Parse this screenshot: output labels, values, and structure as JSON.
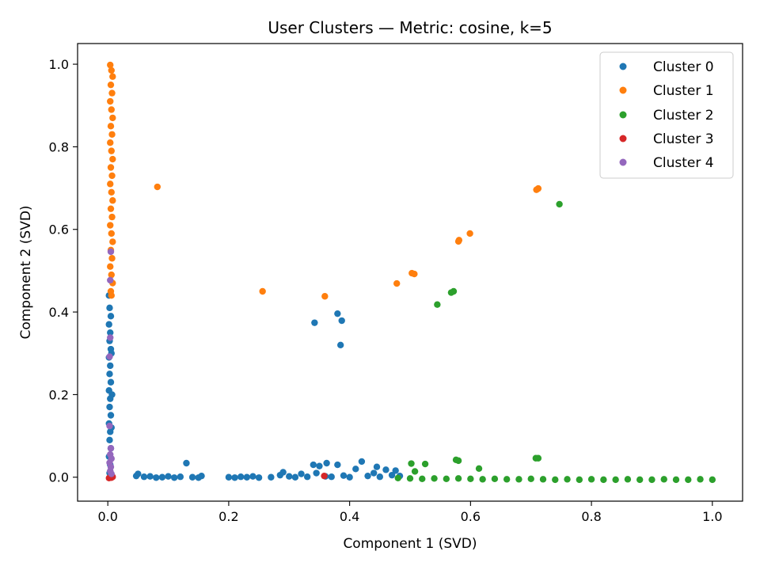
{
  "chart_data": {
    "type": "scatter",
    "title": "User Clusters — Metric: cosine, k=5",
    "xlabel": "Component 1 (SVD)",
    "ylabel": "Component 2 (SVD)",
    "xlim": [
      -0.05,
      1.05
    ],
    "ylim": [
      -0.058,
      1.05
    ],
    "x_ticks": [
      0.0,
      0.2,
      0.4,
      0.6,
      0.8,
      1.0
    ],
    "y_ticks": [
      0.0,
      0.2,
      0.4,
      0.6,
      0.8,
      1.0
    ],
    "x_tick_labels": [
      "0.0",
      "0.2",
      "0.4",
      "0.6",
      "0.8",
      "1.0"
    ],
    "y_tick_labels": [
      "0.0",
      "0.2",
      "0.4",
      "0.6",
      "0.8",
      "1.0"
    ],
    "grid": false,
    "legend_position": "top-right",
    "series": [
      {
        "name": "Cluster 0",
        "color": "#1f77b4",
        "points": [
          [
            0.002,
            0.44
          ],
          [
            0.003,
            0.41
          ],
          [
            0.005,
            0.39
          ],
          [
            0.002,
            0.37
          ],
          [
            0.004,
            0.35
          ],
          [
            0.003,
            0.33
          ],
          [
            0.005,
            0.31
          ],
          [
            0.002,
            0.29
          ],
          [
            0.004,
            0.27
          ],
          [
            0.003,
            0.25
          ],
          [
            0.005,
            0.23
          ],
          [
            0.002,
            0.21
          ],
          [
            0.004,
            0.19
          ],
          [
            0.003,
            0.17
          ],
          [
            0.005,
            0.15
          ],
          [
            0.002,
            0.13
          ],
          [
            0.004,
            0.11
          ],
          [
            0.003,
            0.09
          ],
          [
            0.005,
            0.07
          ],
          [
            0.002,
            0.05
          ],
          [
            0.004,
            0.03
          ],
          [
            0.003,
            0.01
          ],
          [
            0.006,
            0.12
          ],
          [
            0.007,
            0.2
          ],
          [
            0.006,
            0.3
          ],
          [
            0.047,
            0.003
          ],
          [
            0.05,
            0.008
          ],
          [
            0.06,
            0.001
          ],
          [
            0.07,
            0.002
          ],
          [
            0.08,
            -0.001
          ],
          [
            0.09,
            0.0
          ],
          [
            0.1,
            0.002
          ],
          [
            0.11,
            -0.001
          ],
          [
            0.12,
            0.001
          ],
          [
            0.13,
            0.034
          ],
          [
            0.14,
            0.0
          ],
          [
            0.15,
            -0.001
          ],
          [
            0.155,
            0.003
          ],
          [
            0.2,
            0.0
          ],
          [
            0.21,
            -0.001
          ],
          [
            0.22,
            0.001
          ],
          [
            0.23,
            0.0
          ],
          [
            0.24,
            0.002
          ],
          [
            0.25,
            -0.001
          ],
          [
            0.27,
            0.0
          ],
          [
            0.285,
            0.005
          ],
          [
            0.29,
            0.012
          ],
          [
            0.3,
            0.002
          ],
          [
            0.31,
            0.0
          ],
          [
            0.32,
            0.008
          ],
          [
            0.33,
            0.001
          ],
          [
            0.34,
            0.03
          ],
          [
            0.345,
            0.01
          ],
          [
            0.35,
            0.027
          ],
          [
            0.36,
            0.002
          ],
          [
            0.362,
            0.034
          ],
          [
            0.37,
            0.001
          ],
          [
            0.38,
            0.03
          ],
          [
            0.39,
            0.004
          ],
          [
            0.4,
            0.0
          ],
          [
            0.41,
            0.02
          ],
          [
            0.42,
            0.038
          ],
          [
            0.43,
            0.003
          ],
          [
            0.44,
            0.01
          ],
          [
            0.445,
            0.025
          ],
          [
            0.45,
            0.001
          ],
          [
            0.46,
            0.018
          ],
          [
            0.47,
            0.005
          ],
          [
            0.476,
            0.016
          ],
          [
            0.483,
            0.003
          ],
          [
            0.342,
            0.374
          ],
          [
            0.38,
            0.396
          ],
          [
            0.387,
            0.379
          ],
          [
            0.385,
            0.32
          ]
        ]
      },
      {
        "name": "Cluster 1",
        "color": "#ff7f0e",
        "points": [
          [
            0.004,
            0.998
          ],
          [
            0.006,
            0.985
          ],
          [
            0.008,
            0.97
          ],
          [
            0.005,
            0.95
          ],
          [
            0.007,
            0.93
          ],
          [
            0.004,
            0.91
          ],
          [
            0.006,
            0.89
          ],
          [
            0.008,
            0.87
          ],
          [
            0.005,
            0.85
          ],
          [
            0.007,
            0.83
          ],
          [
            0.004,
            0.81
          ],
          [
            0.006,
            0.79
          ],
          [
            0.008,
            0.77
          ],
          [
            0.005,
            0.75
          ],
          [
            0.007,
            0.73
          ],
          [
            0.004,
            0.71
          ],
          [
            0.006,
            0.69
          ],
          [
            0.008,
            0.67
          ],
          [
            0.005,
            0.65
          ],
          [
            0.007,
            0.63
          ],
          [
            0.004,
            0.61
          ],
          [
            0.006,
            0.59
          ],
          [
            0.008,
            0.57
          ],
          [
            0.005,
            0.55
          ],
          [
            0.007,
            0.53
          ],
          [
            0.004,
            0.51
          ],
          [
            0.006,
            0.49
          ],
          [
            0.008,
            0.47
          ],
          [
            0.005,
            0.45
          ],
          [
            0.006,
            0.44
          ],
          [
            0.082,
            0.703
          ],
          [
            0.256,
            0.45
          ],
          [
            0.359,
            0.438
          ],
          [
            0.478,
            0.469
          ],
          [
            0.503,
            0.494
          ],
          [
            0.507,
            0.492
          ],
          [
            0.58,
            0.571
          ],
          [
            0.581,
            0.574
          ],
          [
            0.599,
            0.59
          ],
          [
            0.709,
            0.696
          ],
          [
            0.712,
            0.699
          ]
        ]
      },
      {
        "name": "Cluster 2",
        "color": "#2ca02c",
        "points": [
          [
            0.48,
            -0.002
          ],
          [
            0.5,
            -0.003
          ],
          [
            0.52,
            -0.004
          ],
          [
            0.54,
            -0.003
          ],
          [
            0.56,
            -0.004
          ],
          [
            0.58,
            -0.003
          ],
          [
            0.6,
            -0.004
          ],
          [
            0.62,
            -0.005
          ],
          [
            0.64,
            -0.004
          ],
          [
            0.66,
            -0.005
          ],
          [
            0.68,
            -0.005
          ],
          [
            0.7,
            -0.004
          ],
          [
            0.72,
            -0.005
          ],
          [
            0.74,
            -0.006
          ],
          [
            0.76,
            -0.005
          ],
          [
            0.78,
            -0.006
          ],
          [
            0.8,
            -0.005
          ],
          [
            0.82,
            -0.006
          ],
          [
            0.84,
            -0.006
          ],
          [
            0.86,
            -0.005
          ],
          [
            0.88,
            -0.006
          ],
          [
            0.9,
            -0.006
          ],
          [
            0.92,
            -0.005
          ],
          [
            0.94,
            -0.006
          ],
          [
            0.96,
            -0.006
          ],
          [
            0.98,
            -0.005
          ],
          [
            1.0,
            -0.006
          ],
          [
            0.502,
            0.033
          ],
          [
            0.508,
            0.014
          ],
          [
            0.525,
            0.032
          ],
          [
            0.576,
            0.042
          ],
          [
            0.58,
            0.04
          ],
          [
            0.614,
            0.021
          ],
          [
            0.708,
            0.046
          ],
          [
            0.712,
            0.046
          ],
          [
            0.545,
            0.418
          ],
          [
            0.568,
            0.447
          ],
          [
            0.572,
            0.45
          ],
          [
            0.747,
            0.661
          ]
        ]
      },
      {
        "name": "Cluster 3",
        "color": "#d62728",
        "points": [
          [
            0.002,
            -0.002
          ],
          [
            0.004,
            0.0
          ],
          [
            0.006,
            -0.001
          ],
          [
            0.008,
            0.001
          ],
          [
            0.358,
            0.003
          ]
        ]
      },
      {
        "name": "Cluster 4",
        "color": "#9467bd",
        "points": [
          [
            0.005,
            0.546
          ],
          [
            0.004,
            0.477
          ],
          [
            0.004,
            0.338
          ],
          [
            0.003,
            0.292
          ],
          [
            0.003,
            0.124
          ],
          [
            0.005,
            0.07
          ],
          [
            0.004,
            0.055
          ],
          [
            0.006,
            0.045
          ],
          [
            0.003,
            0.035
          ],
          [
            0.005,
            0.025
          ],
          [
            0.004,
            0.015
          ],
          [
            0.006,
            0.008
          ]
        ]
      }
    ]
  }
}
